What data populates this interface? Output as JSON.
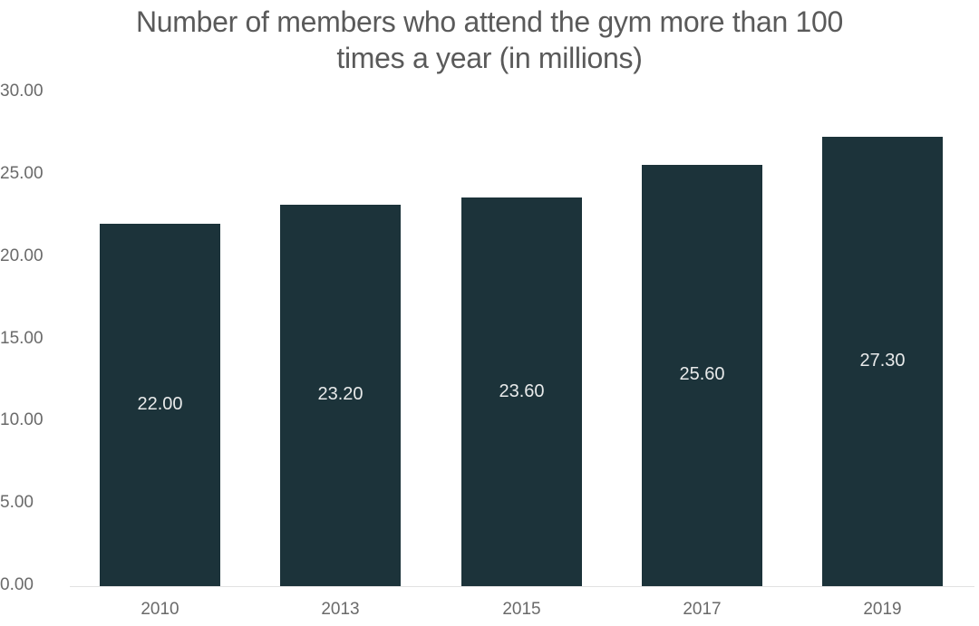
{
  "chart_data": {
    "type": "bar",
    "title": "Number of members who attend the gym more than 100 times a year (in millions)",
    "title_lines": [
      "Number of members who attend the gym more than 100",
      "times a year (in millions)"
    ],
    "categories": [
      "2010",
      "2013",
      "2015",
      "2017",
      "2019"
    ],
    "values": [
      22.0,
      23.2,
      23.6,
      25.6,
      27.3
    ],
    "value_labels": [
      "22.00",
      "23.20",
      "23.60",
      "25.60",
      "27.30"
    ],
    "xlabel": "",
    "ylabel": "",
    "ylim": [
      0,
      30
    ],
    "yticks": [
      "0.00",
      "5.00",
      "10.00",
      "15.00",
      "20.00",
      "25.00",
      "30.00"
    ],
    "grid": false,
    "legend": null,
    "bar_color": "#1c333a"
  }
}
